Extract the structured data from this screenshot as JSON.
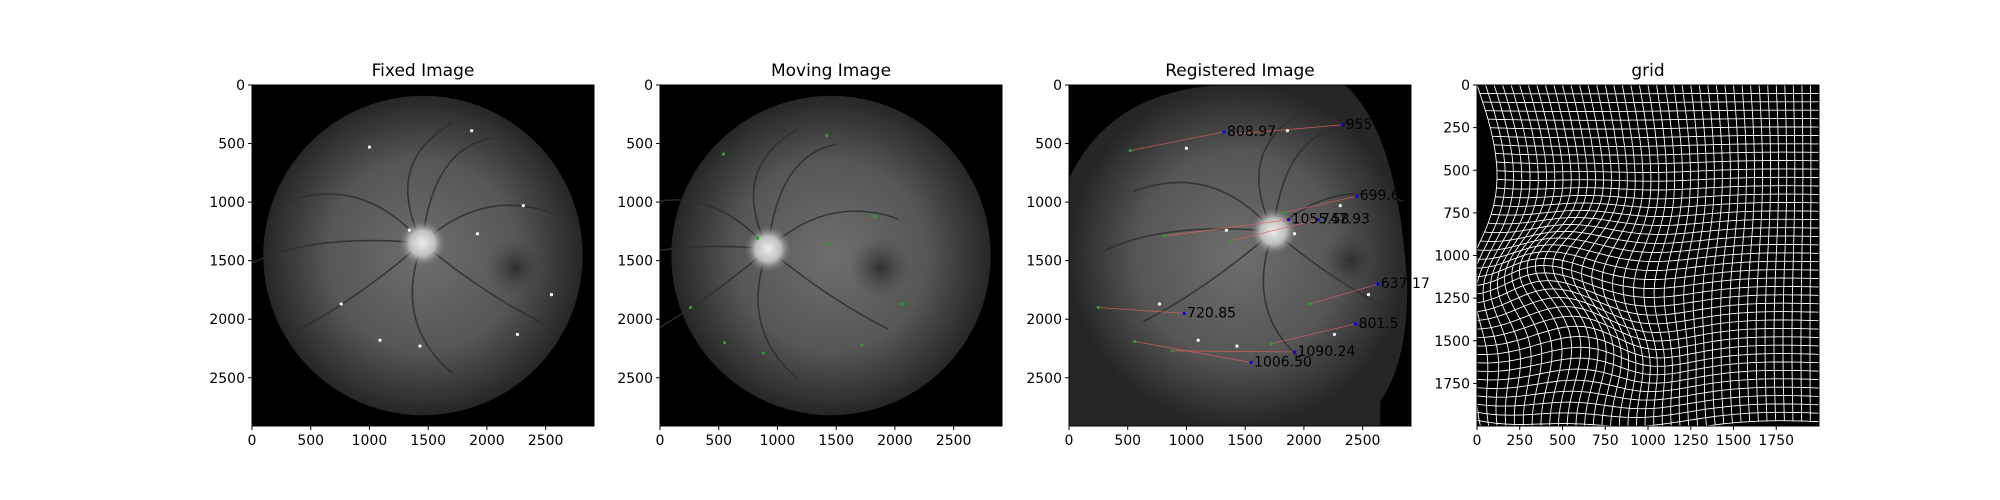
{
  "colors": {
    "background": "#ffffff",
    "image_black": "#000000",
    "fundus_edge": "#262626",
    "fundus_mid": "#565656",
    "fundus_center": "#6e6e6e",
    "optic_disc": "#d9d9d9",
    "keypoint_fixed": "#ffffff",
    "keypoint_moving": "#2ca02c",
    "keypoint_registered": "#0000ff",
    "match_line": "#e06060",
    "grid_line": "#ffffff"
  },
  "chart_data": [
    {
      "type": "image",
      "title": "Fixed Image",
      "xlim": [
        0,
        2912
      ],
      "ylim": [
        2912,
        0
      ],
      "xticks": [
        0,
        500,
        1000,
        1500,
        2000,
        2500
      ],
      "yticks": [
        0,
        500,
        1000,
        1500,
        2000,
        2500
      ],
      "xtick_labels": [
        "0",
        "500",
        "1000",
        "1500",
        "2000",
        "2500"
      ],
      "ytick_labels": [
        "0",
        "500",
        "1000",
        "1500",
        "2000",
        "2500"
      ],
      "fundus": {
        "center": [
          1456,
          1456
        ],
        "radius": 1360,
        "disc": [
          1450,
          1350
        ],
        "fovea": [
          2250,
          1560
        ]
      },
      "keypoints": [
        {
          "x": 1000,
          "y": 530,
          "color": "#ffffff"
        },
        {
          "x": 1870,
          "y": 390,
          "color": "#ffffff"
        },
        {
          "x": 2310,
          "y": 1030,
          "color": "#ffffff"
        },
        {
          "x": 1340,
          "y": 1240,
          "color": "#ffffff"
        },
        {
          "x": 1920,
          "y": 1270,
          "color": "#ffffff"
        },
        {
          "x": 2550,
          "y": 1790,
          "color": "#ffffff"
        },
        {
          "x": 760,
          "y": 1870,
          "color": "#ffffff"
        },
        {
          "x": 2260,
          "y": 2130,
          "color": "#ffffff"
        },
        {
          "x": 1090,
          "y": 2180,
          "color": "#ffffff"
        },
        {
          "x": 1430,
          "y": 2230,
          "color": "#ffffff"
        }
      ],
      "annotations": []
    },
    {
      "type": "image",
      "title": "Moving Image",
      "xlim": [
        0,
        2912
      ],
      "ylim": [
        2912,
        0
      ],
      "xticks": [
        0,
        500,
        1000,
        1500,
        2000,
        2500
      ],
      "yticks": [
        0,
        500,
        1000,
        1500,
        2000,
        2500
      ],
      "xtick_labels": [
        "0",
        "500",
        "1000",
        "1500",
        "2000",
        "2500"
      ],
      "ytick_labels": [
        "0",
        "500",
        "1000",
        "1500",
        "2000",
        "2500"
      ],
      "fundus": {
        "center": [
          1456,
          1456
        ],
        "radius": 1360,
        "disc": [
          920,
          1400
        ],
        "fovea": [
          1880,
          1560
        ]
      },
      "keypoints": [
        {
          "x": 540,
          "y": 590,
          "color": "#2ca02c"
        },
        {
          "x": 1420,
          "y": 430,
          "color": "#2ca02c"
        },
        {
          "x": 1830,
          "y": 1120,
          "color": "#2ca02c"
        },
        {
          "x": 830,
          "y": 1310,
          "color": "#2ca02c"
        },
        {
          "x": 1420,
          "y": 1350,
          "color": "#2ca02c"
        },
        {
          "x": 260,
          "y": 1900,
          "color": "#2ca02c"
        },
        {
          "x": 2060,
          "y": 1870,
          "color": "#2ca02c"
        },
        {
          "x": 550,
          "y": 2200,
          "color": "#2ca02c"
        },
        {
          "x": 880,
          "y": 2290,
          "color": "#2ca02c"
        },
        {
          "x": 1720,
          "y": 2220,
          "color": "#2ca02c"
        }
      ],
      "annotations": []
    },
    {
      "type": "image",
      "title": "Registered Image",
      "xlim": [
        0,
        2912
      ],
      "ylim": [
        2912,
        0
      ],
      "xticks": [
        0,
        500,
        1000,
        1500,
        2000,
        2500
      ],
      "yticks": [
        0,
        500,
        1000,
        1500,
        2000,
        2500
      ],
      "xtick_labels": [
        "0",
        "500",
        "1000",
        "1500",
        "2000",
        "2500"
      ],
      "ytick_labels": [
        "0",
        "500",
        "1000",
        "1500",
        "2000",
        "2500"
      ],
      "fundus": {
        "center": [
          1456,
          1456
        ],
        "radius": 1360,
        "disc": [
          1740,
          1250
        ],
        "fovea": [
          2400,
          1500
        ]
      },
      "keypoints": [
        {
          "x": 1000,
          "y": 540,
          "color": "#ffffff"
        },
        {
          "x": 1860,
          "y": 390,
          "color": "#ffffff"
        },
        {
          "x": 2310,
          "y": 1030,
          "color": "#ffffff"
        },
        {
          "x": 1340,
          "y": 1240,
          "color": "#ffffff"
        },
        {
          "x": 1920,
          "y": 1270,
          "color": "#ffffff"
        },
        {
          "x": 2550,
          "y": 1790,
          "color": "#ffffff"
        },
        {
          "x": 770,
          "y": 1870,
          "color": "#ffffff"
        },
        {
          "x": 2260,
          "y": 2130,
          "color": "#ffffff"
        },
        {
          "x": 1100,
          "y": 2180,
          "color": "#ffffff"
        },
        {
          "x": 1430,
          "y": 2230,
          "color": "#ffffff"
        },
        {
          "x": 1320,
          "y": 400,
          "color": "#0000ff"
        },
        {
          "x": 2330,
          "y": 340,
          "color": "#0000ff"
        },
        {
          "x": 2450,
          "y": 950,
          "color": "#0000ff"
        },
        {
          "x": 1870,
          "y": 1150,
          "color": "#0000ff"
        },
        {
          "x": 2120,
          "y": 1150,
          "color": "#0000ff"
        },
        {
          "x": 2630,
          "y": 1700,
          "color": "#0000ff"
        },
        {
          "x": 980,
          "y": 1950,
          "color": "#0000ff"
        },
        {
          "x": 2440,
          "y": 2040,
          "color": "#0000ff"
        },
        {
          "x": 1550,
          "y": 2370,
          "color": "#0000ff"
        },
        {
          "x": 1920,
          "y": 2280,
          "color": "#0000ff"
        },
        {
          "x": 520,
          "y": 560,
          "color": "#2ca02c"
        },
        {
          "x": 810,
          "y": 1290,
          "color": "#2ca02c"
        },
        {
          "x": 1380,
          "y": 1330,
          "color": "#2ca02c"
        },
        {
          "x": 1830,
          "y": 1090,
          "color": "#2ca02c"
        },
        {
          "x": 250,
          "y": 1900,
          "color": "#2ca02c"
        },
        {
          "x": 2050,
          "y": 1870,
          "color": "#2ca02c"
        },
        {
          "x": 560,
          "y": 2190,
          "color": "#2ca02c"
        },
        {
          "x": 880,
          "y": 2270,
          "color": "#2ca02c"
        },
        {
          "x": 1720,
          "y": 2210,
          "color": "#2ca02c"
        }
      ],
      "match_lines": [
        {
          "x1": 520,
          "y1": 560,
          "x2": 1320,
          "y2": 400
        },
        {
          "x1": 1400,
          "y1": 420,
          "x2": 2330,
          "y2": 340
        },
        {
          "x1": 1830,
          "y1": 1090,
          "x2": 2450,
          "y2": 950
        },
        {
          "x1": 810,
          "y1": 1290,
          "x2": 1870,
          "y2": 1150
        },
        {
          "x1": 1380,
          "y1": 1330,
          "x2": 2120,
          "y2": 1150
        },
        {
          "x1": 2050,
          "y1": 1870,
          "x2": 2630,
          "y2": 1700
        },
        {
          "x1": 250,
          "y1": 1900,
          "x2": 980,
          "y2": 1950
        },
        {
          "x1": 1720,
          "y1": 2210,
          "x2": 2440,
          "y2": 2040
        },
        {
          "x1": 560,
          "y1": 2190,
          "x2": 1550,
          "y2": 2370
        },
        {
          "x1": 880,
          "y1": 2270,
          "x2": 1920,
          "y2": 2280
        }
      ],
      "annotations": [
        {
          "text": "808.97",
          "x": 1320,
          "y": 400
        },
        {
          "text": "955",
          "x": 2330,
          "y": 340
        },
        {
          "text": "699.6",
          "x": 2450,
          "y": 950
        },
        {
          "text": "1055.58",
          "x": 1870,
          "y": 1150
        },
        {
          "text": "747.93",
          "x": 2120,
          "y": 1150
        },
        {
          "text": "637.17",
          "x": 2630,
          "y": 1700
        },
        {
          "text": "720.85",
          "x": 980,
          "y": 1950
        },
        {
          "text": "801.5",
          "x": 2440,
          "y": 2040
        },
        {
          "text": "1006.50",
          "x": 1550,
          "y": 2370
        },
        {
          "text": "1090.24",
          "x": 1920,
          "y": 2280
        }
      ]
    },
    {
      "type": "deformation_grid",
      "title": "grid",
      "xlim": [
        0,
        2000
      ],
      "ylim": [
        2000,
        0
      ],
      "xticks": [
        0,
        250,
        500,
        750,
        1000,
        1250,
        1500,
        1750
      ],
      "yticks": [
        0,
        250,
        500,
        750,
        1000,
        1250,
        1500,
        1750
      ],
      "xtick_labels": [
        "0",
        "250",
        "500",
        "750",
        "1000",
        "1250",
        "1500",
        "1750"
      ],
      "ytick_labels": [
        "0",
        "250",
        "500",
        "750",
        "1000",
        "1250",
        "1500",
        "1750"
      ],
      "grid_spacing": 50,
      "fold_center": [
        550,
        1350
      ]
    }
  ]
}
